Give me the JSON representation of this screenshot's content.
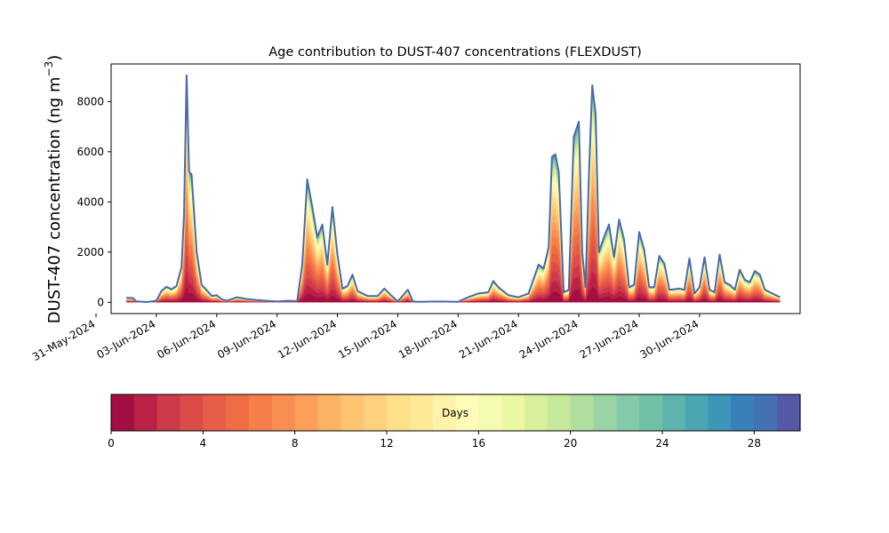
{
  "chart_data": {
    "type": "area",
    "title": "Age contribution to DUST-407 concentrations (FLEXDUST)",
    "ylabel": "DUST-407 concentration (ng m",
    "ylabel_sup": "−3",
    "ylabel_close": ")",
    "xlabel": "",
    "xlim": [
      "2024-05-31T18:00",
      "2024-07-05T00:00"
    ],
    "ylim": [
      -450,
      9500
    ],
    "yticks": [
      0,
      2000,
      4000,
      6000,
      8000
    ],
    "xticks": [
      "31-May-2024",
      "03-Jun-2024",
      "06-Jun-2024",
      "09-Jun-2024",
      "12-Jun-2024",
      "15-Jun-2024",
      "18-Jun-2024",
      "21-Jun-2024",
      "24-Jun-2024",
      "27-Jun-2024",
      "30-Jun-2024"
    ],
    "xtick_dates": [
      "2024-05-31",
      "2024-06-03",
      "2024-06-06",
      "2024-06-09",
      "2024-06-12",
      "2024-06-15",
      "2024-06-18",
      "2024-06-21",
      "2024-06-24",
      "2024-06-27",
      "2024-06-30"
    ],
    "total_line_color": "#4a6aa8",
    "total": [
      [
        "2024-06-01T12:00",
        180
      ],
      [
        "2024-06-01T20:00",
        170
      ],
      [
        "2024-06-02T00:00",
        40
      ],
      [
        "2024-06-02T12:00",
        10
      ],
      [
        "2024-06-03T00:00",
        60
      ],
      [
        "2024-06-03T06:00",
        450
      ],
      [
        "2024-06-03T12:00",
        620
      ],
      [
        "2024-06-03T18:00",
        520
      ],
      [
        "2024-06-04T00:00",
        650
      ],
      [
        "2024-06-04T06:00",
        1400
      ],
      [
        "2024-06-04T09:00",
        3500
      ],
      [
        "2024-06-04T12:00",
        9050
      ],
      [
        "2024-06-04T15:00",
        5200
      ],
      [
        "2024-06-04T18:00",
        5100
      ],
      [
        "2024-06-05T00:00",
        2000
      ],
      [
        "2024-06-05T06:00",
        700
      ],
      [
        "2024-06-05T12:00",
        480
      ],
      [
        "2024-06-05T18:00",
        250
      ],
      [
        "2024-06-06T00:00",
        280
      ],
      [
        "2024-06-06T06:00",
        120
      ],
      [
        "2024-06-06T12:00",
        60
      ],
      [
        "2024-06-07T00:00",
        200
      ],
      [
        "2024-06-07T12:00",
        130
      ],
      [
        "2024-06-08T00:00",
        90
      ],
      [
        "2024-06-08T12:00",
        60
      ],
      [
        "2024-06-09T00:00",
        30
      ],
      [
        "2024-06-09T12:00",
        60
      ],
      [
        "2024-06-10T00:00",
        50
      ],
      [
        "2024-06-10T06:00",
        1500
      ],
      [
        "2024-06-10T12:00",
        4900
      ],
      [
        "2024-06-10T18:00",
        3800
      ],
      [
        "2024-06-11T00:00",
        2600
      ],
      [
        "2024-06-11T06:00",
        3100
      ],
      [
        "2024-06-11T12:00",
        1500
      ],
      [
        "2024-06-11T18:00",
        3800
      ],
      [
        "2024-06-12T00:00",
        1900
      ],
      [
        "2024-06-12T06:00",
        550
      ],
      [
        "2024-06-12T12:00",
        650
      ],
      [
        "2024-06-12T18:00",
        1100
      ],
      [
        "2024-06-13T00:00",
        450
      ],
      [
        "2024-06-13T12:00",
        250
      ],
      [
        "2024-06-14T00:00",
        250
      ],
      [
        "2024-06-14T08:00",
        550
      ],
      [
        "2024-06-14T16:00",
        280
      ],
      [
        "2024-06-15T00:00",
        30
      ],
      [
        "2024-06-15T12:00",
        500
      ],
      [
        "2024-06-15T18:00",
        40
      ],
      [
        "2024-06-16T00:00",
        20
      ],
      [
        "2024-06-17T00:00",
        30
      ],
      [
        "2024-06-18T00:00",
        20
      ],
      [
        "2024-06-18T12:00",
        200
      ],
      [
        "2024-06-19T00:00",
        350
      ],
      [
        "2024-06-19T12:00",
        400
      ],
      [
        "2024-06-19T18:00",
        850
      ],
      [
        "2024-06-20T00:00",
        600
      ],
      [
        "2024-06-20T12:00",
        280
      ],
      [
        "2024-06-21T00:00",
        200
      ],
      [
        "2024-06-21T12:00",
        350
      ],
      [
        "2024-06-22T00:00",
        1500
      ],
      [
        "2024-06-22T06:00",
        1350
      ],
      [
        "2024-06-22T12:00",
        2200
      ],
      [
        "2024-06-22T16:00",
        5800
      ],
      [
        "2024-06-22T20:00",
        5900
      ],
      [
        "2024-06-23T00:00",
        5200
      ],
      [
        "2024-06-23T06:00",
        400
      ],
      [
        "2024-06-23T12:00",
        500
      ],
      [
        "2024-06-23T18:00",
        6600
      ],
      [
        "2024-06-24T00:00",
        7200
      ],
      [
        "2024-06-24T04:00",
        2000
      ],
      [
        "2024-06-24T08:00",
        600
      ],
      [
        "2024-06-24T12:00",
        5000
      ],
      [
        "2024-06-24T16:00",
        8650
      ],
      [
        "2024-06-24T20:00",
        7500
      ],
      [
        "2024-06-25T00:00",
        2000
      ],
      [
        "2024-06-25T06:00",
        2600
      ],
      [
        "2024-06-25T12:00",
        3100
      ],
      [
        "2024-06-25T18:00",
        1800
      ],
      [
        "2024-06-26T00:00",
        3300
      ],
      [
        "2024-06-26T06:00",
        2500
      ],
      [
        "2024-06-26T12:00",
        600
      ],
      [
        "2024-06-26T18:00",
        700
      ],
      [
        "2024-06-27T00:00",
        2800
      ],
      [
        "2024-06-27T06:00",
        2100
      ],
      [
        "2024-06-27T12:00",
        600
      ],
      [
        "2024-06-27T18:00",
        600
      ],
      [
        "2024-06-28T00:00",
        1850
      ],
      [
        "2024-06-28T06:00",
        1550
      ],
      [
        "2024-06-28T12:00",
        500
      ],
      [
        "2024-06-29T00:00",
        550
      ],
      [
        "2024-06-29T06:00",
        500
      ],
      [
        "2024-06-29T12:00",
        1750
      ],
      [
        "2024-06-29T18:00",
        350
      ],
      [
        "2024-06-30T00:00",
        600
      ],
      [
        "2024-06-30T06:00",
        1800
      ],
      [
        "2024-06-30T12:00",
        500
      ],
      [
        "2024-06-30T18:00",
        400
      ],
      [
        "2024-07-01T00:00",
        1900
      ],
      [
        "2024-07-01T06:00",
        800
      ],
      [
        "2024-07-01T12:00",
        700
      ],
      [
        "2024-07-01T18:00",
        500
      ],
      [
        "2024-07-02T00:00",
        1300
      ],
      [
        "2024-07-02T06:00",
        900
      ],
      [
        "2024-07-02T12:00",
        800
      ],
      [
        "2024-07-02T18:00",
        1250
      ],
      [
        "2024-07-03T00:00",
        1100
      ],
      [
        "2024-07-03T06:00",
        500
      ],
      [
        "2024-07-03T12:00",
        400
      ],
      [
        "2024-07-03T18:00",
        300
      ],
      [
        "2024-07-04T00:00",
        200
      ]
    ],
    "colorbar": {
      "label": "Days",
      "min": 0,
      "max": 30,
      "bins": 30,
      "ticks": [
        0,
        4,
        8,
        12,
        16,
        20,
        24,
        28
      ],
      "colors": [
        "#a30f43",
        "#bb2246",
        "#cd3a4b",
        "#dc4c4a",
        "#e65e47",
        "#ef6d45",
        "#f67e4b",
        "#f98e52",
        "#fca05b",
        "#fdb366",
        "#fec472",
        "#fed17f",
        "#fee08b",
        "#fee999",
        "#fff2aa",
        "#fffbb8",
        "#f5fbb1",
        "#ebf7a2",
        "#d8ef9c",
        "#c6e89b",
        "#b0de9f",
        "#9ad4a4",
        "#84caa8",
        "#70c0a6",
        "#5eb3ac",
        "#4ba5b2",
        "#3d95b8",
        "#3980bb",
        "#4471b2",
        "#5659a5"
      ]
    }
  }
}
